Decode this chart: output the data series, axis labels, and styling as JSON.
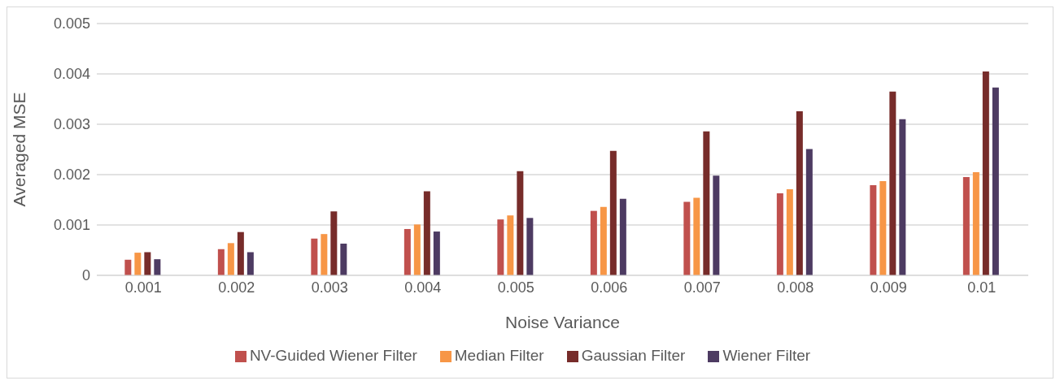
{
  "chart_data": {
    "type": "bar",
    "xlabel": "Noise Variance",
    "ylabel": "Averaged MSE",
    "categories": [
      "0.001",
      "0.002",
      "0.003",
      "0.004",
      "0.005",
      "0.006",
      "0.007",
      "0.008",
      "0.009",
      "0.01"
    ],
    "series": [
      {
        "name": "NV-Guided Wiener Filter",
        "color": "#c0504d",
        "values": [
          0.00031,
          0.00052,
          0.00073,
          0.00092,
          0.00111,
          0.00128,
          0.00146,
          0.00163,
          0.00179,
          0.00195
        ]
      },
      {
        "name": "Median Filter",
        "color": "#f79646",
        "values": [
          0.00045,
          0.00064,
          0.00082,
          0.00101,
          0.00119,
          0.00136,
          0.00154,
          0.00171,
          0.00187,
          0.00205
        ]
      },
      {
        "name": "Gaussian Filter",
        "color": "#772c2a",
        "values": [
          0.00046,
          0.00086,
          0.00127,
          0.00167,
          0.00207,
          0.00247,
          0.00286,
          0.00326,
          0.00365,
          0.00405
        ]
      },
      {
        "name": "Wiener Filter",
        "color": "#4d3b62",
        "values": [
          0.00032,
          0.00046,
          0.00063,
          0.00087,
          0.00114,
          0.00152,
          0.00198,
          0.00251,
          0.0031,
          0.00373
        ]
      }
    ],
    "ylim": [
      0,
      0.005
    ],
    "yticks": [
      0,
      0.001,
      0.002,
      0.003,
      0.004,
      0.005
    ],
    "grid": "y",
    "legend": "bottom"
  }
}
